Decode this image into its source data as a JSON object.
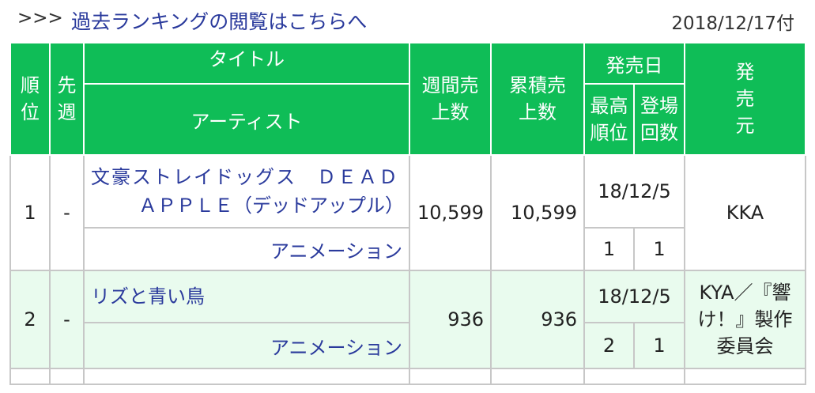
{
  "header": {
    "arrows": ">>>",
    "past_ranking_link": "過去ランキングの閲覧はこちらへ",
    "date": "2018/12/17付"
  },
  "columns": {
    "rank": "順位",
    "prev_week": "先週",
    "title": "タイトル",
    "artist": "アーティスト",
    "weekly_sales": "週間売上数",
    "cumulative_sales": "累積売上数",
    "release_date": "発売日",
    "peak_rank": "最高順位",
    "appearances": "登場回数",
    "label": "発売元"
  },
  "rows": [
    {
      "rank": "1",
      "prev": "-",
      "title_line1": "文豪ストレイドッグス　ＤＥＡＤ",
      "title_line2": "ＡＰＰＬＥ（デッドアップル）",
      "artist": "アニメーション",
      "weekly": "10,599",
      "cumulative": "10,599",
      "release": "18/12/5",
      "peak": "1",
      "count": "1",
      "label": "KKA"
    },
    {
      "rank": "2",
      "prev": "-",
      "title_line1": "リズと青い鳥",
      "artist": "アニメーション",
      "weekly": "936",
      "cumulative": "936",
      "release": "18/12/5",
      "peak": "2",
      "count": "1",
      "label": "KYA／『響け！』製作委員会"
    }
  ],
  "colors": {
    "header_green": "#0fbd57",
    "link_blue": "#2a3a9c",
    "alt_row": "#e9fbee"
  }
}
